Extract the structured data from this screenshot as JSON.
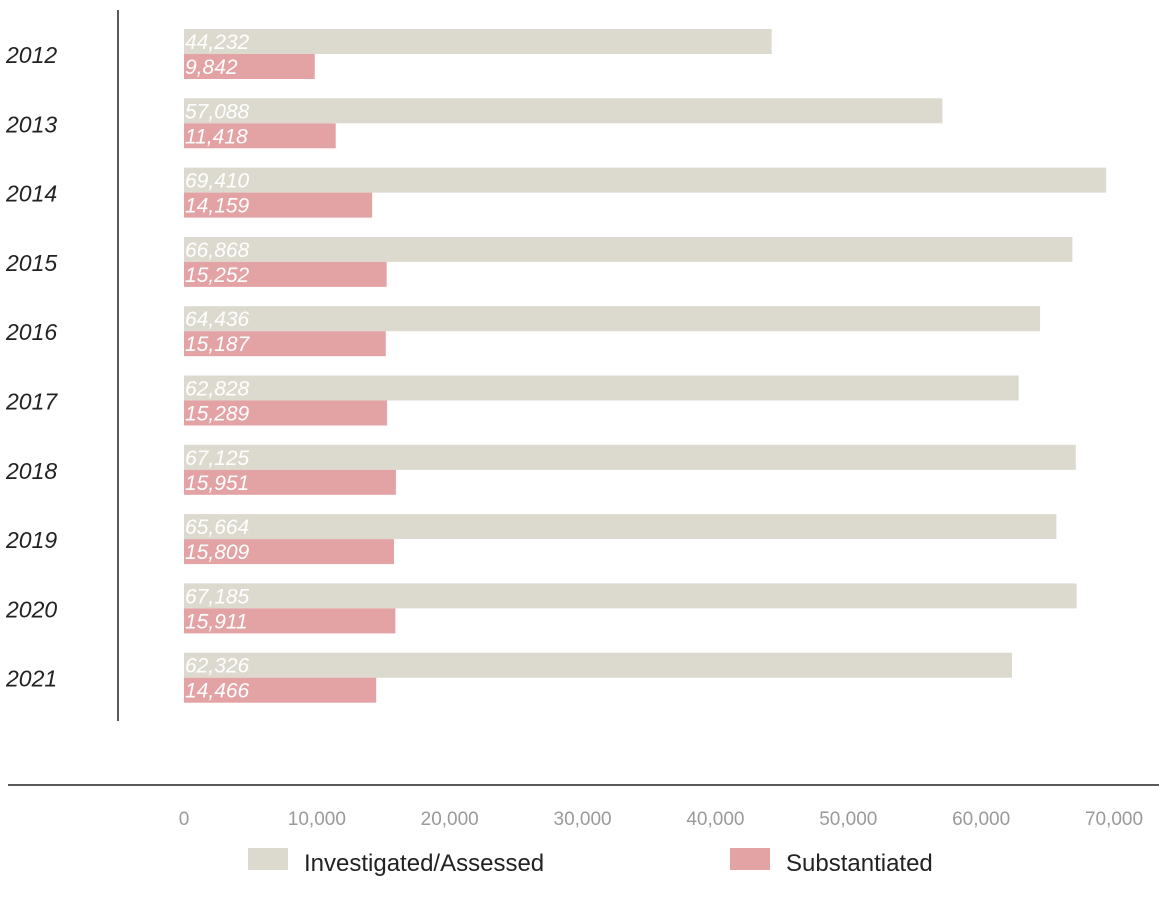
{
  "chart_data": {
    "type": "bar",
    "orientation": "horizontal",
    "categories": [
      "2012",
      "2013",
      "2014",
      "2015",
      "2016",
      "2017",
      "2018",
      "2019",
      "2020",
      "2021"
    ],
    "series": [
      {
        "name": "Investigated/Assessed",
        "color": "#dcd9ce",
        "values": [
          44232,
          57088,
          69410,
          66868,
          64436,
          62828,
          67125,
          65664,
          67185,
          62326
        ],
        "labels": [
          "44,232",
          "57,088",
          "69,410",
          "66,868",
          "64,436",
          "62,828",
          "67,125",
          "65,664",
          "67,185",
          "62,326"
        ]
      },
      {
        "name": "Substantiated",
        "color": "#e3a3a5",
        "values": [
          9842,
          11418,
          14159,
          15252,
          15187,
          15289,
          15951,
          15809,
          15911,
          14466
        ],
        "labels": [
          "9,842",
          "11,418",
          "14,159",
          "15,252",
          "15,187",
          "15,289",
          "15,951",
          "15,809",
          "15,911",
          "14,466"
        ]
      }
    ],
    "xlim": [
      0,
      70000
    ],
    "xticks": [
      0,
      10000,
      20000,
      30000,
      40000,
      50000,
      60000,
      70000
    ],
    "xtick_labels": [
      "0",
      "10,000",
      "20,000",
      "30,000",
      "40,000",
      "50,000",
      "60,000",
      "70,000"
    ],
    "legend_position": "bottom",
    "grid": false
  }
}
